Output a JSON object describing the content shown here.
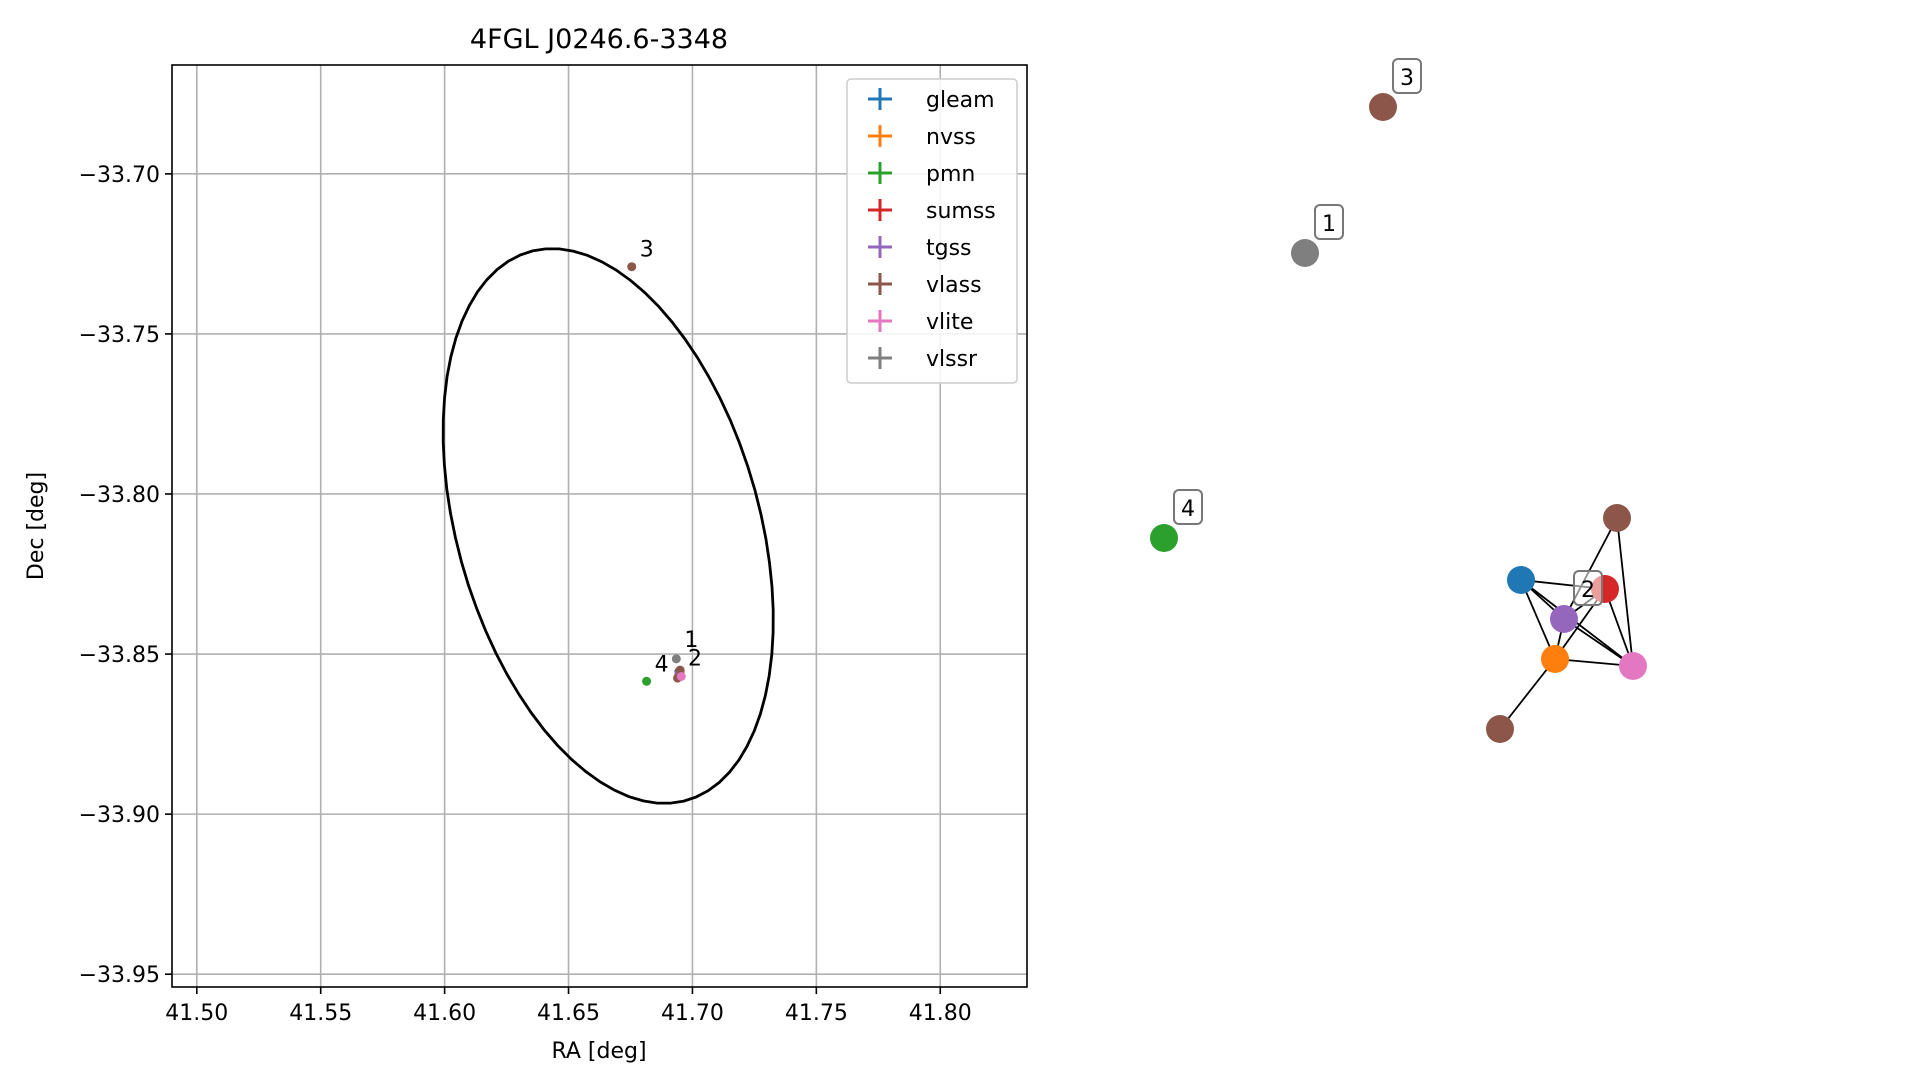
{
  "chart_data": [
    {
      "type": "scatter",
      "title": "4FGL J0246.6-3348",
      "xlabel": "RA [deg]",
      "ylabel": "Dec [deg]",
      "xlim": [
        41.49,
        41.835
      ],
      "ylim": [
        -33.954,
        -33.666
      ],
      "xticks": [
        41.5,
        41.55,
        41.6,
        41.65,
        41.7,
        41.75,
        41.8
      ],
      "xtick_labels": [
        "41.50",
        "41.55",
        "41.60",
        "41.65",
        "41.70",
        "41.75",
        "41.80"
      ],
      "yticks": [
        -33.7,
        -33.75,
        -33.8,
        -33.85,
        -33.9,
        -33.95
      ],
      "ytick_labels": [
        "−33.70",
        "−33.75",
        "−33.80",
        "−33.85",
        "−33.90",
        "−33.95"
      ],
      "grid": true,
      "legend_position": "top-right",
      "ellipse": {
        "center": [
          41.666,
          -33.81
        ],
        "semi_axes": [
          0.059,
          0.092
        ],
        "rotation_deg": 26
      },
      "series": [
        {
          "name": "gleam",
          "color": "#1f77b4",
          "points": [
            [
              41.6945,
              -33.8555
            ]
          ]
        },
        {
          "name": "nvss",
          "color": "#ff7f0e",
          "points": [
            [
              41.6945,
              -33.8565
            ]
          ]
        },
        {
          "name": "pmn",
          "color": "#2ca02c",
          "points": [
            [
              41.6815,
              -33.8585
            ]
          ]
        },
        {
          "name": "sumss",
          "color": "#d62728",
          "points": [
            [
              41.695,
              -33.8555
            ]
          ]
        },
        {
          "name": "tgss",
          "color": "#9467bd",
          "points": [
            [
              41.6946,
              -33.856
            ]
          ]
        },
        {
          "name": "vlass",
          "color": "#8c564b",
          "points": [
            [
              41.6755,
              -33.729
            ],
            [
              41.695,
              -33.855
            ],
            [
              41.694,
              -33.8575
            ]
          ]
        },
        {
          "name": "vlite",
          "color": "#e377c2",
          "points": [
            [
              41.6955,
              -33.857
            ]
          ]
        },
        {
          "name": "vlssr",
          "color": "#7f7f7f",
          "points": [
            [
              41.6935,
              -33.8515
            ]
          ]
        }
      ],
      "annotations": [
        {
          "text": "1",
          "at": [
            41.6935,
            -33.8515
          ]
        },
        {
          "text": "2",
          "at": [
            41.695,
            -33.8555
          ]
        },
        {
          "text": "3",
          "at": [
            41.6755,
            -33.729
          ]
        },
        {
          "text": "4",
          "at": [
            41.6815,
            -33.8585
          ]
        }
      ]
    },
    {
      "type": "network",
      "nodes": [
        {
          "id": "vlass_3",
          "color": "#8c564b",
          "label": "3"
        },
        {
          "id": "vlssr_1",
          "color": "#7f7f7f",
          "label": "1"
        },
        {
          "id": "pmn_4",
          "color": "#2ca02c",
          "label": "4"
        },
        {
          "id": "vlass_a",
          "color": "#8c564b",
          "label": ""
        },
        {
          "id": "gleam",
          "color": "#1f77b4",
          "label": ""
        },
        {
          "id": "sumss",
          "color": "#d62728",
          "label": ""
        },
        {
          "id": "tgss_2",
          "color": "#9467bd",
          "label": "2"
        },
        {
          "id": "nvss",
          "color": "#ff7f0e",
          "label": ""
        },
        {
          "id": "vlite",
          "color": "#e377c2",
          "label": ""
        },
        {
          "id": "vlass_b",
          "color": "#8c564b",
          "label": ""
        }
      ],
      "edges": [
        [
          "vlass_a",
          "tgss_2"
        ],
        [
          "vlass_a",
          "vlite"
        ],
        [
          "gleam",
          "sumss"
        ],
        [
          "gleam",
          "tgss_2"
        ],
        [
          "gleam",
          "nvss"
        ],
        [
          "gleam",
          "vlite"
        ],
        [
          "sumss",
          "tgss_2"
        ],
        [
          "sumss",
          "nvss"
        ],
        [
          "sumss",
          "vlite"
        ],
        [
          "tgss_2",
          "nvss"
        ],
        [
          "tgss_2",
          "vlite"
        ],
        [
          "nvss",
          "vlite"
        ],
        [
          "nvss",
          "vlass_b"
        ]
      ]
    }
  ]
}
